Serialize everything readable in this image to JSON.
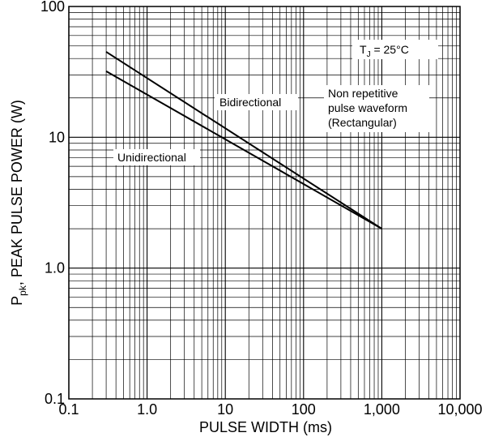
{
  "chart_data": {
    "type": "line",
    "xlabel": "PULSE WIDTH (ms)",
    "ylabel_main": "P",
    "ylabel_sub": "pk",
    "ylabel_rest": ", PEAK PULSE POWER (W)",
    "xscale": "log",
    "yscale": "log",
    "xlim": [
      0.1,
      10000
    ],
    "ylim": [
      0.1,
      100
    ],
    "grid": true,
    "x_ticks": [
      {
        "value": 0.1,
        "label": "0.1"
      },
      {
        "value": 1,
        "label": "1.0"
      },
      {
        "value": 10,
        "label": "10"
      },
      {
        "value": 100,
        "label": "100"
      },
      {
        "value": 1000,
        "label": "1,000"
      },
      {
        "value": 10000,
        "label": "10,000"
      }
    ],
    "y_ticks": [
      {
        "value": 0.1,
        "label": "0.1"
      },
      {
        "value": 1,
        "label": "1.0"
      },
      {
        "value": 10,
        "label": "10"
      },
      {
        "value": 100,
        "label": "100"
      }
    ],
    "series": [
      {
        "name": "Bidirectional",
        "x": [
          0.3,
          1000
        ],
        "y": [
          45,
          2
        ]
      },
      {
        "name": "Unidirectional",
        "x": [
          0.3,
          1000
        ],
        "y": [
          32,
          2
        ]
      }
    ],
    "annotations": {
      "temp_main": "T",
      "temp_sub": "J",
      "temp_rest": " = 25°C",
      "waveform_line1": "Non repetitive",
      "waveform_line2": "pulse waveform",
      "waveform_line3": "(Rectangular)"
    }
  }
}
